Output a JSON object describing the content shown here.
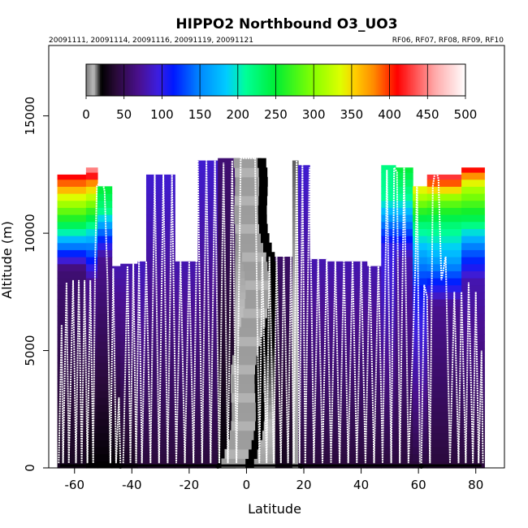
{
  "chart_data": {
    "type": "heatmap",
    "title": "HIPPO2 Northbound O3_UO3",
    "subtitle_left": "20091111, 20091114, 20091116, 20091119, 20091121",
    "subtitle_right": "RF06, RF07, RF08, RF09, RF10",
    "xlabel": "Latitude",
    "ylabel": "Altitude (m)",
    "xlim": [
      -69,
      90
    ],
    "ylim": [
      0,
      18000
    ],
    "xticks": [
      -60,
      -40,
      -20,
      0,
      20,
      40,
      60,
      80
    ],
    "yticks": [
      0,
      5000,
      10000,
      15000
    ],
    "colorbar": {
      "range": [
        0,
        500
      ],
      "ticks": [
        0,
        50,
        100,
        150,
        200,
        250,
        300,
        350,
        400,
        450,
        500
      ],
      "stops": [
        {
          "v": 0,
          "c": "#7a7a7a"
        },
        {
          "v": 10,
          "c": "#bdbdbd"
        },
        {
          "v": 20,
          "c": "#000000"
        },
        {
          "v": 40,
          "c": "#2a0a3a"
        },
        {
          "v": 70,
          "c": "#4a1090"
        },
        {
          "v": 95,
          "c": "#3c1ee0"
        },
        {
          "v": 115,
          "c": "#0018ff"
        },
        {
          "v": 150,
          "c": "#0088ff"
        },
        {
          "v": 185,
          "c": "#00ccff"
        },
        {
          "v": 210,
          "c": "#00ff99"
        },
        {
          "v": 250,
          "c": "#00ee33"
        },
        {
          "v": 300,
          "c": "#88ff00"
        },
        {
          "v": 335,
          "c": "#ddff00"
        },
        {
          "v": 355,
          "c": "#ffcc00"
        },
        {
          "v": 380,
          "c": "#ff8800"
        },
        {
          "v": 410,
          "c": "#ff0000"
        },
        {
          "v": 430,
          "c": "#ff4444"
        },
        {
          "v": 460,
          "c": "#ffaaaa"
        },
        {
          "v": 500,
          "c": "#ffffff"
        }
      ]
    },
    "columns": [
      {
        "lat": [
          -66,
          -56
        ],
        "top": 12500,
        "profile": [
          [
            0,
            30
          ],
          [
            8500,
            60
          ],
          [
            9500,
            150
          ],
          [
            10500,
            250
          ],
          [
            11500,
            330
          ],
          [
            12500,
            420
          ]
        ]
      },
      {
        "lat": [
          -56,
          -52
        ],
        "top": 12800,
        "profile": [
          [
            0,
            20
          ],
          [
            8000,
            70
          ],
          [
            9500,
            150
          ],
          [
            10500,
            230
          ],
          [
            12000,
            360
          ],
          [
            12800,
            460
          ]
        ]
      },
      {
        "lat": [
          -52,
          -47
        ],
        "top": 12000,
        "profile": [
          [
            0,
            20
          ],
          [
            9000,
            70
          ],
          [
            10200,
            150
          ],
          [
            11000,
            220
          ],
          [
            12000,
            250
          ]
        ]
      },
      {
        "lat": [
          -47,
          -44
        ],
        "top": 8600,
        "profile": [
          [
            0,
            20
          ],
          [
            8600,
            80
          ]
        ]
      },
      {
        "lat": [
          -44,
          -38
        ],
        "top": 8700,
        "profile": [
          [
            0,
            30
          ],
          [
            8700,
            80
          ]
        ]
      },
      {
        "lat": [
          -38,
          -35
        ],
        "top": 8800,
        "profile": [
          [
            0,
            40
          ],
          [
            8800,
            85
          ]
        ]
      },
      {
        "lat": [
          -35,
          -25
        ],
        "top": 12500,
        "profile": [
          [
            0,
            40
          ],
          [
            12500,
            90
          ]
        ]
      },
      {
        "lat": [
          -25,
          -17
        ],
        "top": 8800,
        "profile": [
          [
            0,
            40
          ],
          [
            8800,
            80
          ]
        ]
      },
      {
        "lat": [
          -17,
          -10
        ],
        "top": 13100,
        "profile": [
          [
            0,
            40
          ],
          [
            13100,
            90
          ]
        ]
      },
      {
        "lat": [
          -10,
          -4
        ],
        "top": 13200,
        "profile": [
          [
            0,
            20
          ],
          [
            13200,
            60
          ]
        ]
      },
      {
        "lat": [
          -4,
          5
        ],
        "top": 13200,
        "profile": [
          [
            0,
            5
          ],
          [
            13200,
            15
          ]
        ]
      },
      {
        "lat": [
          5,
          10
        ],
        "top": 9000,
        "profile": [
          [
            0,
            5
          ],
          [
            9000,
            30
          ]
        ]
      },
      {
        "lat": [
          10,
          16
        ],
        "top": 9000,
        "profile": [
          [
            0,
            30
          ],
          [
            9000,
            55
          ]
        ]
      },
      {
        "lat": [
          16,
          18
        ],
        "top": 13100,
        "profile": [
          [
            0,
            5
          ],
          [
            13100,
            15
          ]
        ]
      },
      {
        "lat": [
          18,
          22
        ],
        "top": 12900,
        "profile": [
          [
            0,
            40
          ],
          [
            12900,
            90
          ]
        ]
      },
      {
        "lat": [
          22,
          28
        ],
        "top": 8900,
        "profile": [
          [
            0,
            40
          ],
          [
            8900,
            80
          ]
        ]
      },
      {
        "lat": [
          28,
          42
        ],
        "top": 8800,
        "profile": [
          [
            0,
            40
          ],
          [
            8800,
            80
          ]
        ]
      },
      {
        "lat": [
          42,
          47
        ],
        "top": 8600,
        "profile": [
          [
            0,
            40
          ],
          [
            8600,
            80
          ]
        ]
      },
      {
        "lat": [
          47,
          52
        ],
        "top": 12900,
        "profile": [
          [
            0,
            40
          ],
          [
            9500,
            100
          ],
          [
            10500,
            150
          ],
          [
            11500,
            210
          ],
          [
            12900,
            220
          ]
        ]
      },
      {
        "lat": [
          52,
          58
        ],
        "top": 12800,
        "profile": [
          [
            0,
            40
          ],
          [
            9000,
            80
          ],
          [
            10500,
            150
          ],
          [
            11500,
            210
          ],
          [
            12800,
            250
          ]
        ]
      },
      {
        "lat": [
          58,
          63
        ],
        "top": 12000,
        "profile": [
          [
            0,
            40
          ],
          [
            7600,
            110
          ],
          [
            9000,
            160
          ],
          [
            10500,
            230
          ],
          [
            12000,
            350
          ]
        ]
      },
      {
        "lat": [
          63,
          75
        ],
        "top": 12500,
        "profile": [
          [
            0,
            40
          ],
          [
            7000,
            70
          ],
          [
            7800,
            110
          ],
          [
            9000,
            170
          ],
          [
            10500,
            230
          ],
          [
            11500,
            300
          ],
          [
            12500,
            440
          ]
        ]
      },
      {
        "lat": [
          75,
          83
        ],
        "top": 12800,
        "profile": [
          [
            0,
            40
          ],
          [
            8000,
            80
          ],
          [
            9500,
            150
          ],
          [
            10500,
            230
          ],
          [
            12000,
            320
          ],
          [
            12800,
            420
          ]
        ]
      }
    ],
    "dark_core": {
      "lat_center": [
        [
          0,
          -3
        ],
        [
          5000,
          3
        ],
        [
          9000,
          5
        ],
        [
          13000,
          0
        ]
      ],
      "half_width": 6
    },
    "tracks": [
      [
        [
          -65.5,
          200
        ],
        [
          -64.5,
          6100
        ],
        [
          -64,
          200
        ],
        [
          -62.8,
          7900
        ],
        [
          -62,
          200
        ],
        [
          -60.5,
          8000
        ],
        [
          -59.5,
          200
        ],
        [
          -58.5,
          8000
        ],
        [
          -57.5,
          200
        ],
        [
          -56.5,
          8000
        ],
        [
          -55.5,
          200
        ],
        [
          -54.5,
          8000
        ],
        [
          -53.5,
          200
        ],
        [
          -52.8,
          9000
        ],
        [
          -52.2,
          12000
        ],
        [
          -50.5,
          12300
        ],
        [
          -49.5,
          11800
        ],
        [
          -48.5,
          8000
        ],
        [
          -47.5,
          200
        ],
        [
          -46.5,
          8500
        ],
        [
          -45.5,
          200
        ],
        [
          -44.5,
          3000
        ],
        [
          -44,
          200
        ]
      ],
      [
        [
          -43,
          200
        ],
        [
          -41.5,
          8600
        ],
        [
          -40.5,
          200
        ],
        [
          -39.5,
          8700
        ],
        [
          -38.5,
          200
        ],
        [
          -37.5,
          8800
        ],
        [
          -36.5,
          200
        ],
        [
          -35,
          8800
        ],
        [
          -33.5,
          200
        ],
        [
          -32,
          12500
        ],
        [
          -30.5,
          200
        ],
        [
          -29,
          12500
        ],
        [
          -27.5,
          200
        ],
        [
          -26,
          12500
        ],
        [
          -24.5,
          200
        ],
        [
          -23,
          8800
        ],
        [
          -21.5,
          200
        ],
        [
          -20,
          8800
        ],
        [
          -18.5,
          200
        ],
        [
          -17,
          13100
        ],
        [
          -15.5,
          200
        ],
        [
          -14,
          13100
        ],
        [
          -12.5,
          200
        ],
        [
          -11,
          13100
        ],
        [
          -9.5,
          200
        ]
      ],
      [
        [
          -9.5,
          200
        ],
        [
          -8,
          13000
        ],
        [
          -6.5,
          200
        ],
        [
          -5,
          13100
        ],
        [
          -3.5,
          200
        ],
        [
          -2,
          13200
        ],
        [
          3,
          13200
        ],
        [
          4.5,
          200
        ],
        [
          5.5,
          9000
        ],
        [
          7,
          200
        ],
        [
          8,
          9000
        ],
        [
          9.5,
          200
        ],
        [
          10.5,
          9000
        ],
        [
          12,
          200
        ],
        [
          13,
          9000
        ],
        [
          14.5,
          200
        ],
        [
          15.5,
          9000
        ],
        [
          16.5,
          200
        ],
        [
          17.5,
          13100
        ],
        [
          18.5,
          200
        ],
        [
          19.5,
          12900
        ],
        [
          20.5,
          200
        ]
      ],
      [
        [
          20.5,
          200
        ],
        [
          22,
          12800
        ],
        [
          23.5,
          200
        ],
        [
          25,
          8900
        ],
        [
          26.5,
          200
        ],
        [
          28,
          8900
        ],
        [
          29.5,
          200
        ],
        [
          31,
          8800
        ],
        [
          32.5,
          200
        ],
        [
          34,
          8800
        ],
        [
          35.5,
          200
        ],
        [
          37,
          8800
        ],
        [
          38.5,
          200
        ],
        [
          40,
          8800
        ],
        [
          41.5,
          200
        ],
        [
          43,
          8700
        ],
        [
          44.5,
          200
        ],
        [
          46,
          8700
        ],
        [
          47.5,
          200
        ],
        [
          49,
          12700
        ],
        [
          50.5,
          200
        ],
        [
          51.5,
          12800
        ],
        [
          52.5,
          12600
        ],
        [
          53.5,
          200
        ],
        [
          55,
          12800
        ],
        [
          56.5,
          200
        ],
        [
          58,
          5000
        ],
        [
          59,
          9000
        ],
        [
          59.5,
          12500
        ],
        [
          60.5,
          200
        ]
      ],
      [
        [
          61,
          200
        ],
        [
          62,
          7800
        ],
        [
          63,
          7300
        ],
        [
          64,
          200
        ],
        [
          65,
          12000
        ],
        [
          66,
          12800
        ],
        [
          67,
          12300
        ],
        [
          68,
          8000
        ],
        [
          69.5,
          9000
        ],
        [
          71,
          200
        ],
        [
          72.5,
          7500
        ],
        [
          74,
          200
        ],
        [
          75,
          7500
        ],
        [
          76.5,
          200
        ],
        [
          77.5,
          7900
        ],
        [
          79,
          200
        ],
        [
          80,
          7500
        ],
        [
          81,
          200
        ],
        [
          82,
          5000
        ],
        [
          82.5,
          200
        ]
      ]
    ],
    "markers_lat": [
      -44,
      -10,
      19,
      61
    ],
    "grid": false,
    "legend": "top colorbar"
  }
}
